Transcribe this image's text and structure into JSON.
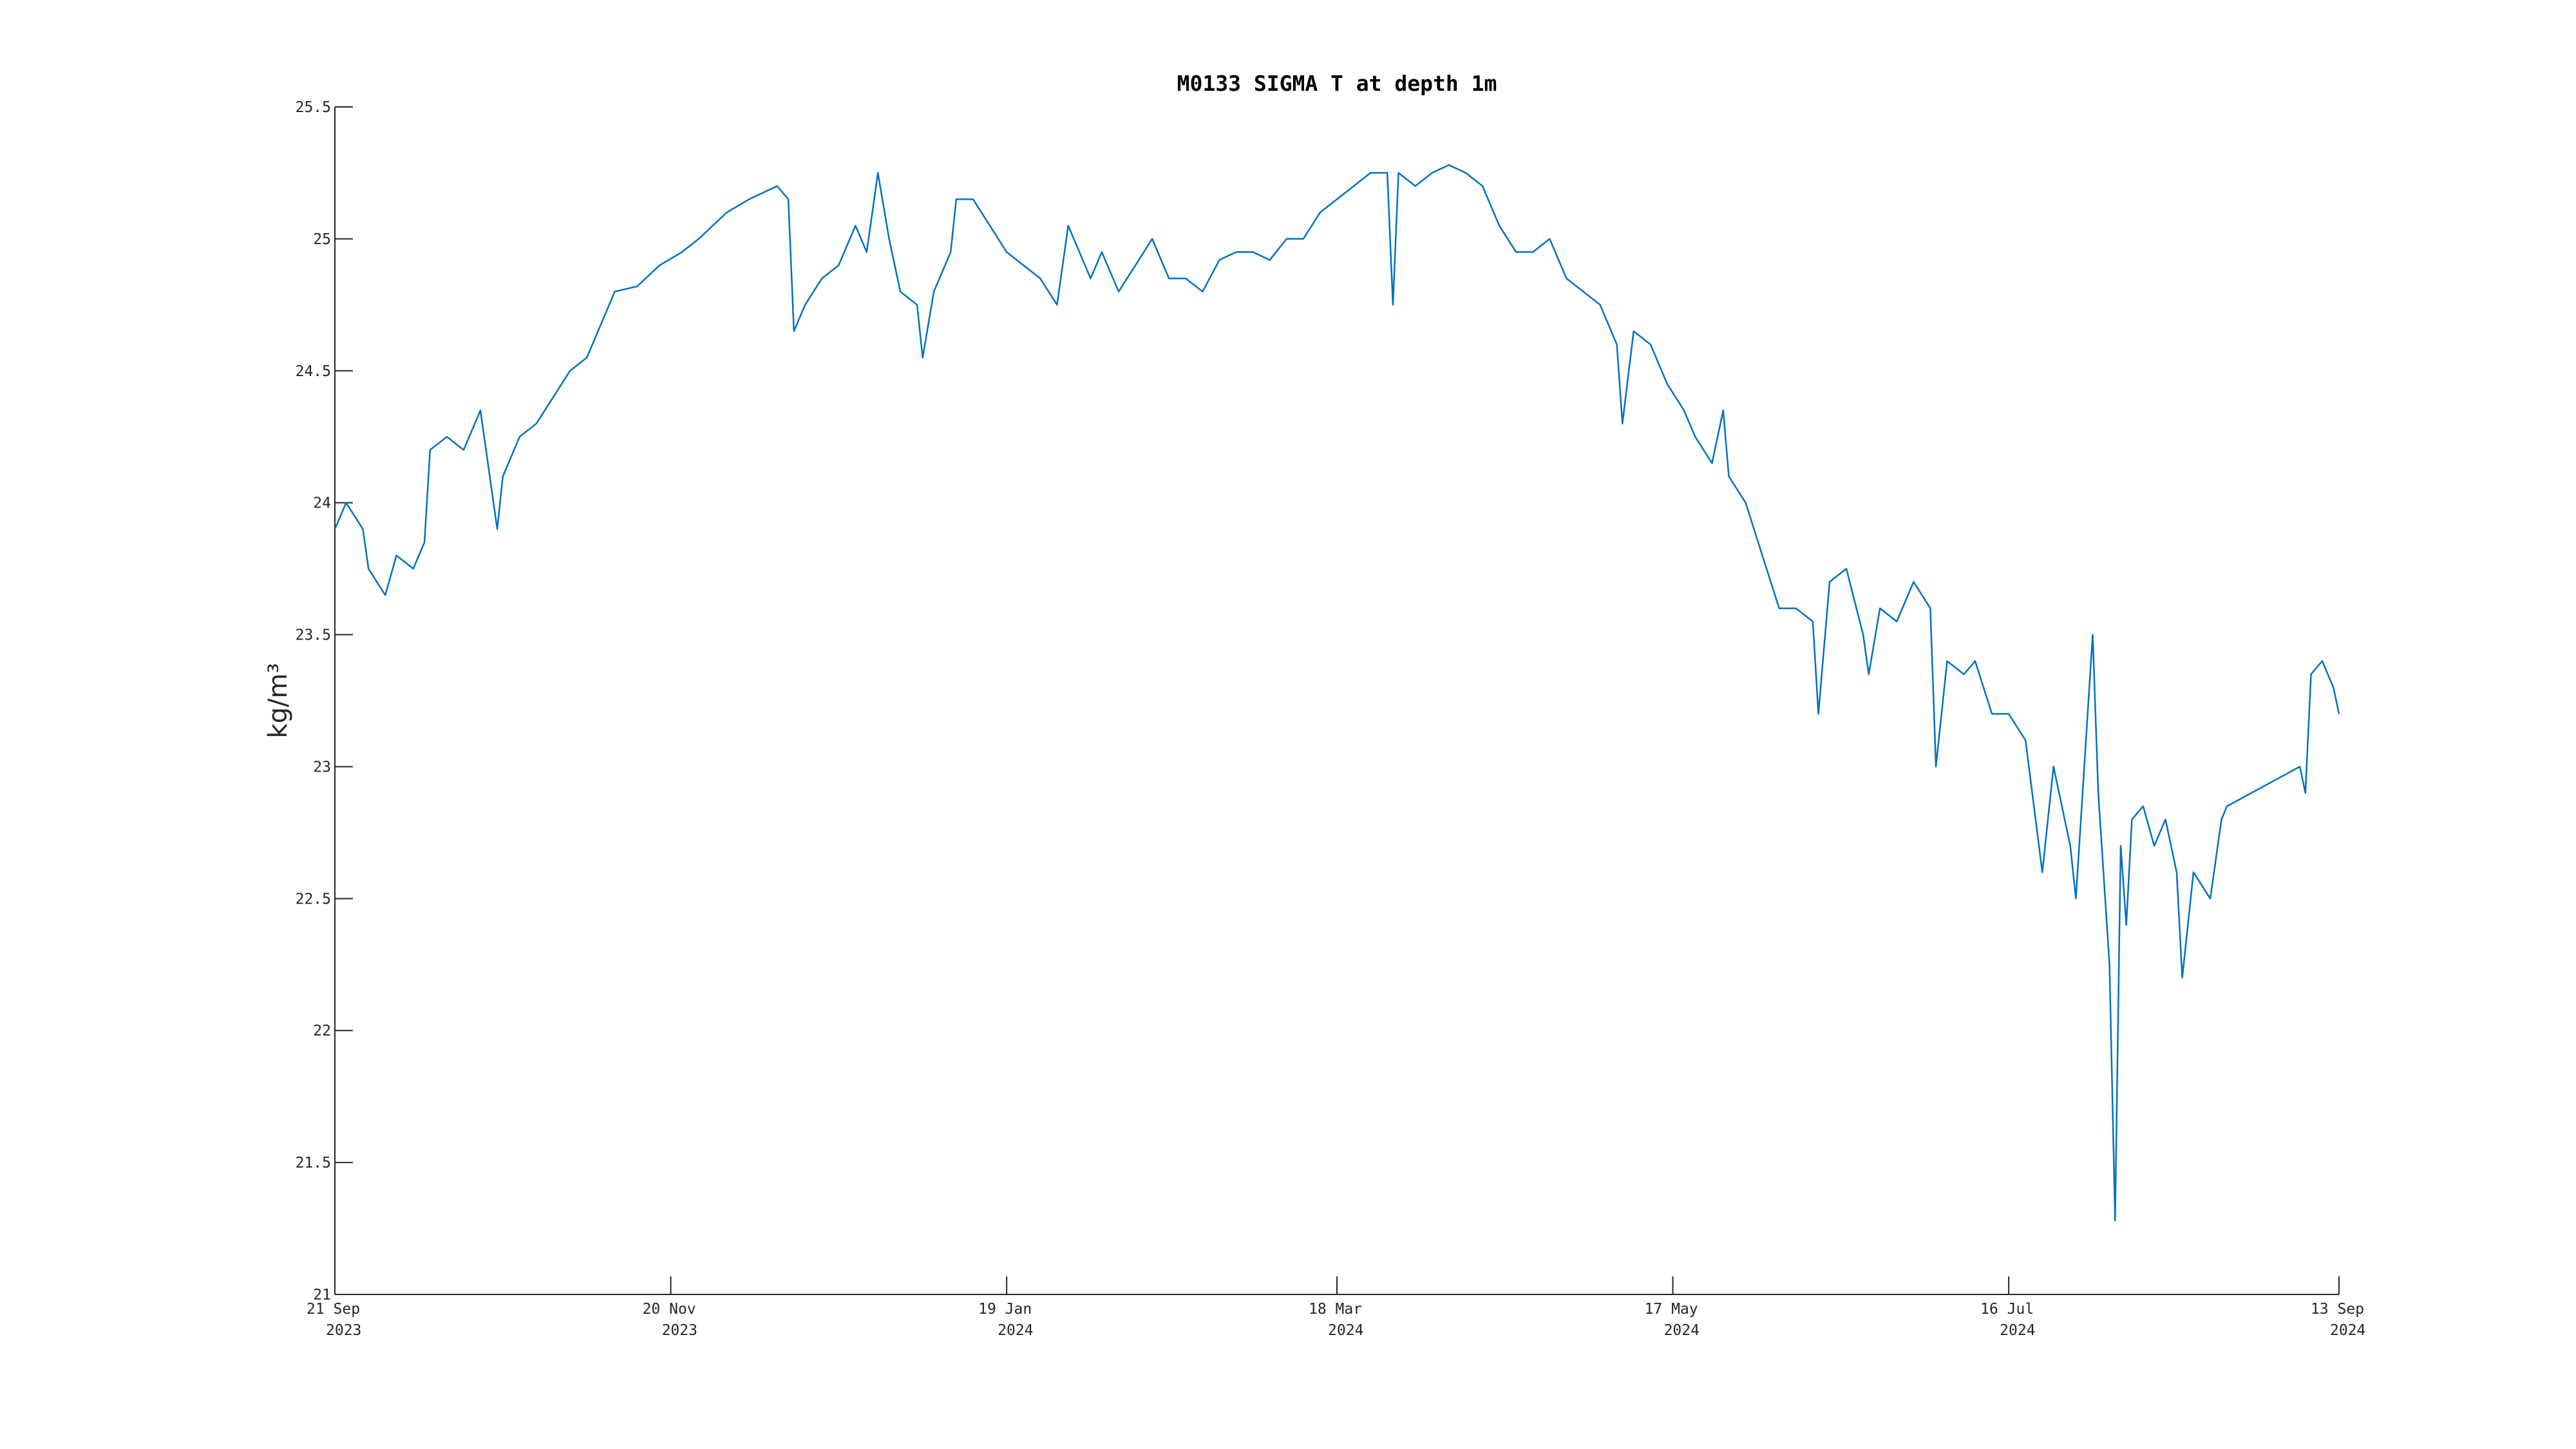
{
  "chart_data": {
    "type": "line",
    "title": "M0133 SIGMA T at depth 1m",
    "y_label": "kg/m³",
    "color": "#0072bd",
    "x": [
      "2023-09-21",
      "2023-09-23",
      "2023-09-26",
      "2023-09-27",
      "2023-09-30",
      "2023-10-02",
      "2023-10-05",
      "2023-10-07",
      "2023-10-08",
      "2023-10-11",
      "2023-10-14",
      "2023-10-17",
      "2023-10-20",
      "2023-10-21",
      "2023-10-24",
      "2023-10-27",
      "2023-10-30",
      "2023-11-02",
      "2023-11-05",
      "2023-11-08",
      "2023-11-10",
      "2023-11-14",
      "2023-11-18",
      "2023-11-22",
      "2023-11-25",
      "2023-11-30",
      "2023-12-04",
      "2023-12-09",
      "2023-12-11",
      "2023-12-12",
      "2023-12-14",
      "2023-12-17",
      "2023-12-20",
      "2023-12-23",
      "2023-12-25",
      "2023-12-27",
      "2023-12-29",
      "2023-12-31",
      "2024-01-03",
      "2024-01-04",
      "2024-01-06",
      "2024-01-09",
      "2024-01-10",
      "2024-01-13",
      "2024-01-16",
      "2024-01-19",
      "2024-01-22",
      "2024-01-25",
      "2024-01-28",
      "2024-01-30",
      "2024-02-03",
      "2024-02-05",
      "2024-02-08",
      "2024-02-11",
      "2024-02-14",
      "2024-02-17",
      "2024-02-20",
      "2024-02-23",
      "2024-02-26",
      "2024-02-29",
      "2024-03-03",
      "2024-03-06",
      "2024-03-09",
      "2024-03-12",
      "2024-03-15",
      "2024-03-18",
      "2024-03-21",
      "2024-03-24",
      "2024-03-27",
      "2024-03-28",
      "2024-03-29",
      "2024-04-01",
      "2024-04-04",
      "2024-04-07",
      "2024-04-10",
      "2024-04-13",
      "2024-04-16",
      "2024-04-19",
      "2024-04-22",
      "2024-04-25",
      "2024-04-28",
      "2024-05-01",
      "2024-05-04",
      "2024-05-07",
      "2024-05-08",
      "2024-05-10",
      "2024-05-13",
      "2024-05-16",
      "2024-05-19",
      "2024-05-21",
      "2024-05-24",
      "2024-05-26",
      "2024-05-27",
      "2024-05-30",
      "2024-06-02",
      "2024-06-05",
      "2024-06-08",
      "2024-06-11",
      "2024-06-12",
      "2024-06-14",
      "2024-06-17",
      "2024-06-20",
      "2024-06-21",
      "2024-06-23",
      "2024-06-26",
      "2024-06-29",
      "2024-07-02",
      "2024-07-03",
      "2024-07-05",
      "2024-07-08",
      "2024-07-10",
      "2024-07-13",
      "2024-07-16",
      "2024-07-19",
      "2024-07-22",
      "2024-07-24",
      "2024-07-27",
      "2024-07-28",
      "2024-07-31",
      "2024-08-01",
      "2024-08-03",
      "2024-08-04",
      "2024-08-05",
      "2024-08-06",
      "2024-08-07",
      "2024-08-09",
      "2024-08-11",
      "2024-08-13",
      "2024-08-15",
      "2024-08-16",
      "2024-08-18",
      "2024-08-21",
      "2024-08-23",
      "2024-08-24",
      "2024-09-06",
      "2024-09-07",
      "2024-09-08",
      "2024-09-10",
      "2024-09-12",
      "2024-09-13"
    ],
    "values": [
      23.9,
      24.0,
      23.9,
      23.75,
      23.65,
      23.8,
      23.75,
      23.85,
      24.2,
      24.25,
      24.2,
      24.35,
      23.9,
      24.1,
      24.25,
      24.3,
      24.4,
      24.5,
      24.55,
      24.7,
      24.8,
      24.82,
      24.9,
      24.95,
      25.0,
      25.1,
      25.15,
      25.2,
      25.15,
      24.65,
      24.75,
      24.85,
      24.9,
      25.05,
      24.95,
      25.25,
      25.0,
      24.8,
      24.75,
      24.55,
      24.8,
      24.95,
      25.15,
      25.15,
      25.05,
      24.95,
      24.9,
      24.85,
      24.75,
      25.05,
      24.85,
      24.95,
      24.8,
      24.9,
      25.0,
      24.85,
      24.85,
      24.8,
      24.92,
      24.95,
      24.95,
      24.92,
      25.0,
      25.0,
      25.1,
      25.15,
      25.2,
      25.25,
      25.25,
      24.75,
      25.25,
      25.2,
      25.25,
      25.28,
      25.25,
      25.2,
      25.05,
      24.95,
      24.95,
      25.0,
      24.85,
      24.8,
      24.75,
      24.6,
      24.3,
      24.65,
      24.6,
      24.45,
      24.35,
      24.25,
      24.15,
      24.35,
      24.1,
      24.0,
      23.8,
      23.6,
      23.6,
      23.55,
      23.2,
      23.7,
      23.75,
      23.5,
      23.35,
      23.6,
      23.55,
      23.7,
      23.6,
      23.0,
      23.4,
      23.35,
      23.4,
      23.2,
      23.2,
      23.1,
      22.6,
      23.0,
      22.7,
      22.5,
      23.5,
      22.9,
      22.25,
      21.28,
      22.7,
      22.4,
      22.8,
      22.85,
      22.7,
      22.8,
      22.6,
      22.2,
      22.6,
      22.5,
      22.8,
      22.85,
      23.0,
      22.9,
      23.35,
      23.4,
      23.3,
      23.2
    ],
    "xlim": [
      "2023-09-21",
      "2024-09-13"
    ],
    "xticks": [
      {
        "value": "2023-09-21",
        "label": "21 Sep 2023"
      },
      {
        "value": "2023-11-20",
        "label": "20 Nov 2023"
      },
      {
        "value": "2024-01-19",
        "label": "19 Jan 2024"
      },
      {
        "value": "2024-03-18",
        "label": "18 Mar 2024"
      },
      {
        "value": "2024-05-17",
        "label": "17 May 2024"
      },
      {
        "value": "2024-07-16",
        "label": "16 Jul 2024"
      },
      {
        "value": "2024-09-13",
        "label": "13 Sep 2024"
      }
    ],
    "ylim": [
      21,
      25.5
    ],
    "yticks": [
      21,
      21.5,
      22,
      22.5,
      23,
      23.5,
      24,
      24.5,
      25,
      25.5
    ]
  }
}
